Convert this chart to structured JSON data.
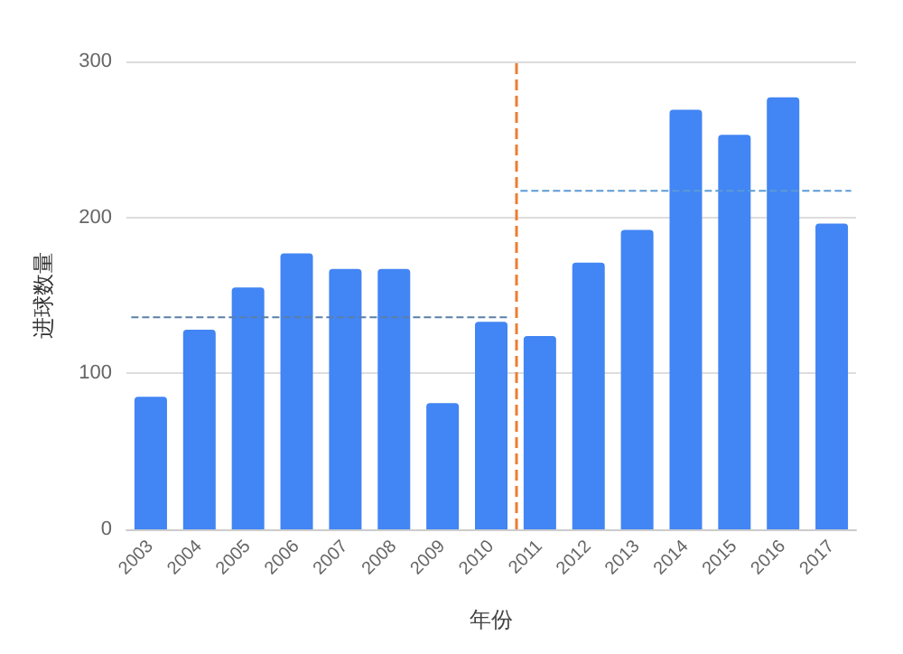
{
  "chart_data": {
    "type": "bar",
    "xlabel": "年份",
    "ylabel": "进球数量",
    "x": [
      2003,
      2004,
      2005,
      2006,
      2007,
      2008,
      2009,
      2010,
      2011,
      2012,
      2013,
      2014,
      2015,
      2016,
      2017
    ],
    "values": [
      85,
      128,
      155,
      177,
      167,
      167,
      81,
      133,
      124,
      171,
      192,
      269,
      253,
      277,
      196
    ],
    "color": "#4285f4",
    "series": [
      {
        "type": "line",
        "x": [
          2002.6,
          2010.4
        ],
        "values": [
          136,
          136
        ],
        "color": "#5a7fa8",
        "line_style": "dashed"
      },
      {
        "type": "line",
        "x": [
          2010.6,
          2017.4
        ],
        "values": [
          217,
          217
        ],
        "color": "#5b9bd5",
        "line_style": "dashed"
      }
    ],
    "xlim": [
      2002.5,
      2017.5
    ],
    "xticks": [
      2003,
      2004,
      2005,
      2006,
      2007,
      2008,
      2009,
      2010,
      2011,
      2012,
      2013,
      2014,
      2015,
      2016,
      2017
    ],
    "ylim": [
      0,
      300
    ],
    "yticks": [
      0,
      100,
      200,
      300
    ],
    "ref_lines": [
      {
        "axis": "x",
        "value": 2010.5,
        "color": "#ed7d31",
        "line_style": "dashed"
      }
    ],
    "grid": "y"
  }
}
